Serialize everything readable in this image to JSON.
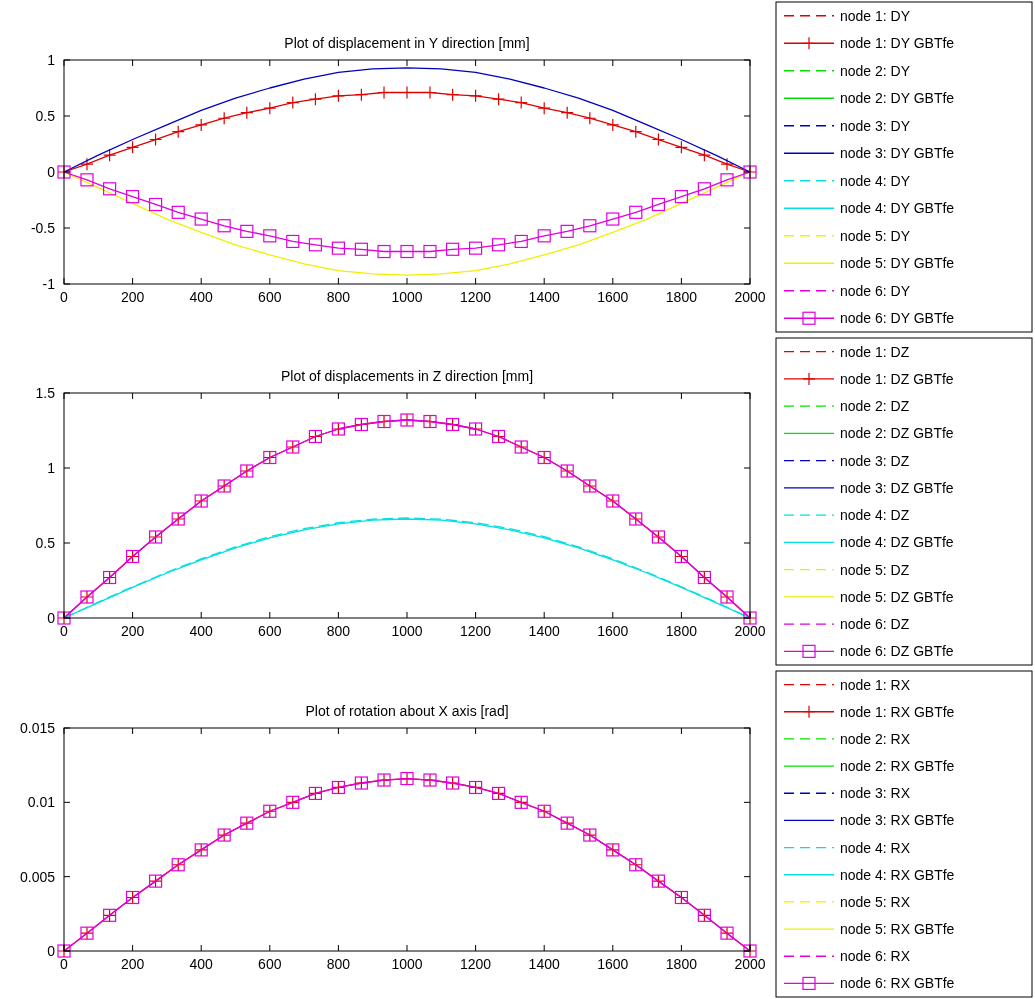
{
  "chart_data": [
    {
      "type": "line",
      "title": "Plot of displacement in Y direction [mm]",
      "xlim": [
        0,
        2000
      ],
      "xticks": [
        0,
        200,
        400,
        600,
        800,
        1000,
        1200,
        1400,
        1600,
        1800,
        2000
      ],
      "ylim": [
        -1,
        1
      ],
      "yticks": [
        -1,
        -0.5,
        0,
        0.5,
        1
      ],
      "legend": "right",
      "series": [
        {
          "name": "node 1: DY",
          "color": "#e00000",
          "line_style": "dashed",
          "marker": "none"
        },
        {
          "name": "node 1: DY GBTfe",
          "color": "#e00000",
          "line_style": "solid",
          "marker": "cross",
          "x": [
            0,
            67,
            133,
            200,
            267,
            333,
            400,
            467,
            533,
            600,
            667,
            733,
            800,
            867,
            933,
            1000,
            1067,
            1133,
            1200,
            1267,
            1333,
            1400,
            1467,
            1533,
            1600,
            1667,
            1733,
            1800,
            1867,
            1933,
            2000
          ],
          "values": [
            0,
            0.07,
            0.15,
            0.22,
            0.29,
            0.36,
            0.42,
            0.48,
            0.53,
            0.57,
            0.62,
            0.65,
            0.68,
            0.69,
            0.71,
            0.71,
            0.71,
            0.69,
            0.68,
            0.65,
            0.62,
            0.57,
            0.53,
            0.48,
            0.42,
            0.36,
            0.29,
            0.22,
            0.15,
            0.07,
            0
          ]
        },
        {
          "name": "node 2: DY",
          "color": "#00e000",
          "line_style": "dashed",
          "marker": "none"
        },
        {
          "name": "node 2: DY GBTfe",
          "color": "#00e000",
          "line_style": "solid",
          "marker": "none"
        },
        {
          "name": "node 3: DY",
          "color": "#0000c0",
          "line_style": "dashed",
          "marker": "none"
        },
        {
          "name": "node 3: DY GBTfe",
          "color": "#0000c0",
          "line_style": "solid",
          "marker": "none",
          "x": [
            0,
            100,
            200,
            300,
            400,
            500,
            600,
            700,
            800,
            900,
            1000,
            1100,
            1200,
            1300,
            1400,
            1500,
            1600,
            1700,
            1800,
            1900,
            2000
          ],
          "values": [
            0,
            0.15,
            0.29,
            0.42,
            0.55,
            0.66,
            0.75,
            0.83,
            0.89,
            0.92,
            0.93,
            0.92,
            0.89,
            0.83,
            0.75,
            0.66,
            0.55,
            0.42,
            0.29,
            0.15,
            0
          ]
        },
        {
          "name": "node 4: DY",
          "color": "#00e0e0",
          "line_style": "dashed",
          "marker": "none"
        },
        {
          "name": "node 4: DY GBTfe",
          "color": "#00e0e0",
          "line_style": "solid",
          "marker": "none"
        },
        {
          "name": "node 5: DY",
          "color": "#f0f000",
          "line_style": "dashed",
          "marker": "none"
        },
        {
          "name": "node 5: DY GBTfe",
          "color": "#f0f000",
          "line_style": "solid",
          "marker": "none",
          "x": [
            0,
            100,
            200,
            300,
            400,
            500,
            600,
            700,
            800,
            900,
            1000,
            1100,
            1200,
            1300,
            1400,
            1500,
            1600,
            1700,
            1800,
            1900,
            2000
          ],
          "values": [
            0,
            -0.14,
            -0.28,
            -0.42,
            -0.54,
            -0.65,
            -0.74,
            -0.82,
            -0.88,
            -0.91,
            -0.92,
            -0.91,
            -0.88,
            -0.82,
            -0.74,
            -0.65,
            -0.54,
            -0.42,
            -0.28,
            -0.14,
            0
          ]
        },
        {
          "name": "node 6: DY",
          "color": "#e000e0",
          "line_style": "dashed",
          "marker": "none"
        },
        {
          "name": "node 6: DY GBTfe",
          "color": "#e000e0",
          "line_style": "solid",
          "marker": "square",
          "x": [
            0,
            67,
            133,
            200,
            267,
            333,
            400,
            467,
            533,
            600,
            667,
            733,
            800,
            867,
            933,
            1000,
            1067,
            1133,
            1200,
            1267,
            1333,
            1400,
            1467,
            1533,
            1600,
            1667,
            1733,
            1800,
            1867,
            1933,
            2000
          ],
          "values": [
            0,
            -0.07,
            -0.15,
            -0.22,
            -0.29,
            -0.36,
            -0.42,
            -0.48,
            -0.53,
            -0.57,
            -0.62,
            -0.65,
            -0.68,
            -0.69,
            -0.71,
            -0.71,
            -0.71,
            -0.69,
            -0.68,
            -0.65,
            -0.62,
            -0.57,
            -0.53,
            -0.48,
            -0.42,
            -0.36,
            -0.29,
            -0.22,
            -0.15,
            -0.07,
            0
          ]
        }
      ]
    },
    {
      "type": "line",
      "title": "Plot of displacements in Z direction [mm]",
      "xlim": [
        0,
        2000
      ],
      "xticks": [
        0,
        200,
        400,
        600,
        800,
        1000,
        1200,
        1400,
        1600,
        1800,
        2000
      ],
      "ylim": [
        0,
        1.5
      ],
      "yticks": [
        0,
        0.5,
        1,
        1.5
      ],
      "legend": "right",
      "series": [
        {
          "name": "node 1: DZ",
          "color": "#e00000",
          "line_style": "dashed",
          "marker": "none"
        },
        {
          "name": "node 1: DZ GBTfe",
          "color": "#e00000",
          "line_style": "solid",
          "marker": "cross",
          "x": [
            0,
            67,
            133,
            200,
            267,
            333,
            400,
            467,
            533,
            600,
            667,
            733,
            800,
            867,
            933,
            1000,
            1067,
            1133,
            1200,
            1267,
            1333,
            1400,
            1467,
            1533,
            1600,
            1667,
            1733,
            1800,
            1867,
            1933,
            2000
          ],
          "values": [
            0,
            0.14,
            0.27,
            0.41,
            0.54,
            0.66,
            0.78,
            0.88,
            0.98,
            1.07,
            1.14,
            1.21,
            1.26,
            1.29,
            1.31,
            1.32,
            1.31,
            1.29,
            1.26,
            1.21,
            1.14,
            1.07,
            0.98,
            0.88,
            0.78,
            0.66,
            0.54,
            0.41,
            0.27,
            0.14,
            0
          ]
        },
        {
          "name": "node 2: DZ",
          "color": "#00e000",
          "line_style": "dashed",
          "marker": "none"
        },
        {
          "name": "node 2: DZ GBTfe",
          "color": "#00e000",
          "line_style": "solid",
          "marker": "none"
        },
        {
          "name": "node 3: DZ",
          "color": "#0000c0",
          "line_style": "dashed",
          "marker": "none"
        },
        {
          "name": "node 3: DZ GBTfe",
          "color": "#0000c0",
          "line_style": "solid",
          "marker": "none"
        },
        {
          "name": "node 4: DZ",
          "color": "#00e0e0",
          "line_style": "dashed",
          "marker": "none",
          "x": [
            0,
            100,
            200,
            300,
            400,
            500,
            600,
            700,
            800,
            900,
            1000,
            1100,
            1200,
            1300,
            1400,
            1500,
            1600,
            1700,
            1800,
            1900,
            2000
          ],
          "values": [
            0,
            0.106,
            0.208,
            0.305,
            0.394,
            0.474,
            0.542,
            0.596,
            0.635,
            0.659,
            0.667,
            0.659,
            0.635,
            0.596,
            0.542,
            0.474,
            0.394,
            0.305,
            0.208,
            0.106,
            0
          ]
        },
        {
          "name": "node 4: DZ GBTfe",
          "color": "#00e0e0",
          "line_style": "solid",
          "marker": "none",
          "x": [
            0,
            100,
            200,
            300,
            400,
            500,
            600,
            700,
            800,
            900,
            1000,
            1100,
            1200,
            1300,
            1400,
            1500,
            1600,
            1700,
            1800,
            1900,
            2000
          ],
          "values": [
            0,
            0.103,
            0.204,
            0.3,
            0.388,
            0.467,
            0.534,
            0.588,
            0.628,
            0.652,
            0.66,
            0.652,
            0.628,
            0.588,
            0.534,
            0.467,
            0.388,
            0.3,
            0.204,
            0.103,
            0
          ]
        },
        {
          "name": "node 5: DZ",
          "color": "#f0f000",
          "line_style": "dashed",
          "marker": "none"
        },
        {
          "name": "node 5: DZ GBTfe",
          "color": "#f0f000",
          "line_style": "solid",
          "marker": "none"
        },
        {
          "name": "node 6: DZ",
          "color": "#e000e0",
          "line_style": "dashed",
          "marker": "none"
        },
        {
          "name": "node 6: DZ GBTfe",
          "color": "#e000e0",
          "line_style": "solid",
          "marker": "square",
          "x": [
            0,
            67,
            133,
            200,
            267,
            333,
            400,
            467,
            533,
            600,
            667,
            733,
            800,
            867,
            933,
            1000,
            1067,
            1133,
            1200,
            1267,
            1333,
            1400,
            1467,
            1533,
            1600,
            1667,
            1733,
            1800,
            1867,
            1933,
            2000
          ],
          "values": [
            0,
            0.14,
            0.27,
            0.41,
            0.54,
            0.66,
            0.78,
            0.88,
            0.98,
            1.07,
            1.14,
            1.21,
            1.26,
            1.29,
            1.31,
            1.32,
            1.31,
            1.29,
            1.26,
            1.21,
            1.14,
            1.07,
            0.98,
            0.88,
            0.78,
            0.66,
            0.54,
            0.41,
            0.27,
            0.14,
            0
          ]
        }
      ]
    },
    {
      "type": "line",
      "title": "Plot of rotation about X axis [rad]",
      "xlim": [
        0,
        2000
      ],
      "xticks": [
        0,
        200,
        400,
        600,
        800,
        1000,
        1200,
        1400,
        1600,
        1800,
        2000
      ],
      "ylim": [
        0,
        0.015
      ],
      "yticks": [
        0,
        0.005,
        0.01,
        0.015
      ],
      "legend": "right",
      "series": [
        {
          "name": "node 1: RX",
          "color": "#e00000",
          "line_style": "dashed",
          "marker": "none"
        },
        {
          "name": "node 1: RX GBTfe",
          "color": "#e00000",
          "line_style": "solid",
          "marker": "cross",
          "x": [
            0,
            67,
            133,
            200,
            267,
            333,
            400,
            467,
            533,
            600,
            667,
            733,
            800,
            867,
            933,
            1000,
            1067,
            1133,
            1200,
            1267,
            1333,
            1400,
            1467,
            1533,
            1600,
            1667,
            1733,
            1800,
            1867,
            1933,
            2000
          ],
          "values": [
            0,
            0.0012,
            0.0024,
            0.0036,
            0.0047,
            0.0058,
            0.0068,
            0.0078,
            0.0086,
            0.0094,
            0.01,
            0.0106,
            0.011,
            0.0113,
            0.0115,
            0.0116,
            0.0115,
            0.0113,
            0.011,
            0.0106,
            0.01,
            0.0094,
            0.0086,
            0.0078,
            0.0068,
            0.0058,
            0.0047,
            0.0036,
            0.0024,
            0.0012,
            0
          ]
        },
        {
          "name": "node 2: RX",
          "color": "#00e000",
          "line_style": "dashed",
          "marker": "none"
        },
        {
          "name": "node 2: RX GBTfe",
          "color": "#00e000",
          "line_style": "solid",
          "marker": "none"
        },
        {
          "name": "node 3: RX",
          "color": "#0000c0",
          "line_style": "dashed",
          "marker": "none"
        },
        {
          "name": "node 3: RX GBTfe",
          "color": "#0000c0",
          "line_style": "solid",
          "marker": "none"
        },
        {
          "name": "node 4: RX",
          "color": "#00e0e0",
          "line_style": "dashed",
          "marker": "none"
        },
        {
          "name": "node 4: RX GBTfe",
          "color": "#00e0e0",
          "line_style": "solid",
          "marker": "none"
        },
        {
          "name": "node 5: RX",
          "color": "#f0f000",
          "line_style": "dashed",
          "marker": "none"
        },
        {
          "name": "node 5: RX GBTfe",
          "color": "#f0f000",
          "line_style": "solid",
          "marker": "none"
        },
        {
          "name": "node 6: RX",
          "color": "#e000e0",
          "line_style": "dashed",
          "marker": "none"
        },
        {
          "name": "node 6: RX GBTfe",
          "color": "#e000e0",
          "line_style": "solid",
          "marker": "square",
          "x": [
            0,
            67,
            133,
            200,
            267,
            333,
            400,
            467,
            533,
            600,
            667,
            733,
            800,
            867,
            933,
            1000,
            1067,
            1133,
            1200,
            1267,
            1333,
            1400,
            1467,
            1533,
            1600,
            1667,
            1733,
            1800,
            1867,
            1933,
            2000
          ],
          "values": [
            0,
            0.0012,
            0.0024,
            0.0036,
            0.0047,
            0.0058,
            0.0068,
            0.0078,
            0.0086,
            0.0094,
            0.01,
            0.0106,
            0.011,
            0.0113,
            0.0115,
            0.0116,
            0.0115,
            0.0113,
            0.011,
            0.0106,
            0.01,
            0.0094,
            0.0086,
            0.0078,
            0.0068,
            0.0058,
            0.0047,
            0.0036,
            0.0024,
            0.0012,
            0
          ]
        }
      ]
    }
  ]
}
